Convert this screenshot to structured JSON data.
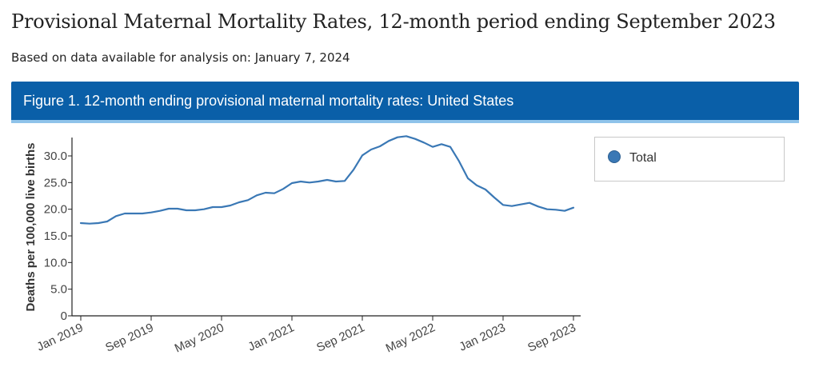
{
  "page": {
    "title": "Provisional Maternal Mortality Rates, 12-month period ending September 2023",
    "subtitle": "Based on data available for analysis on: January 7, 2024"
  },
  "figure": {
    "title": "Figure 1. 12-month ending provisional maternal mortality rates: United States",
    "header_color": "#0a5fa8",
    "accent_color": "#8fc3ea"
  },
  "legend": {
    "items": [
      {
        "label": "Total",
        "color": "#3a78b5"
      }
    ]
  },
  "chart_data": {
    "type": "line",
    "title": "Figure 1. 12-month ending provisional maternal mortality rates: United States",
    "xlabel": "",
    "ylabel": "Deaths per 100,000 live births",
    "ylim": [
      0,
      33.5
    ],
    "yticks": [
      0,
      5,
      10,
      15,
      20,
      25,
      30
    ],
    "ytick_labels": [
      "0",
      "5.0",
      "10.0",
      "15.0",
      "20.0",
      "25.0",
      "30.0"
    ],
    "xticks": [
      "Jan 2019",
      "Sep 2019",
      "May 2020",
      "Jan 2021",
      "Sep 2021",
      "May 2022",
      "Jan 2023",
      "Sep 2023"
    ],
    "xtick_month_index": [
      0,
      8,
      16,
      24,
      32,
      40,
      48,
      56
    ],
    "grid": false,
    "legend_position": "right",
    "x": [
      "Jan 2019",
      "Feb 2019",
      "Mar 2019",
      "Apr 2019",
      "May 2019",
      "Jun 2019",
      "Jul 2019",
      "Aug 2019",
      "Sep 2019",
      "Oct 2019",
      "Nov 2019",
      "Dec 2019",
      "Jan 2020",
      "Feb 2020",
      "Mar 2020",
      "Apr 2020",
      "May 2020",
      "Jun 2020",
      "Jul 2020",
      "Aug 2020",
      "Sep 2020",
      "Oct 2020",
      "Nov 2020",
      "Dec 2020",
      "Jan 2021",
      "Feb 2021",
      "Mar 2021",
      "Apr 2021",
      "May 2021",
      "Jun 2021",
      "Jul 2021",
      "Aug 2021",
      "Sep 2021",
      "Oct 2021",
      "Nov 2021",
      "Dec 2021",
      "Jan 2022",
      "Feb 2022",
      "Mar 2022",
      "Apr 2022",
      "May 2022",
      "Jun 2022",
      "Jul 2022",
      "Aug 2022",
      "Sep 2022",
      "Oct 2022",
      "Nov 2022",
      "Dec 2022",
      "Jan 2023",
      "Feb 2023",
      "Mar 2023",
      "Apr 2023",
      "May 2023",
      "Jun 2023",
      "Jul 2023",
      "Aug 2023",
      "Sep 2023"
    ],
    "series": [
      {
        "name": "Total",
        "color": "#3a78b5",
        "values": [
          17.4,
          17.3,
          17.4,
          17.7,
          18.7,
          19.2,
          19.2,
          19.2,
          19.4,
          19.7,
          20.1,
          20.1,
          19.8,
          19.8,
          20.0,
          20.4,
          20.4,
          20.7,
          21.3,
          21.7,
          22.6,
          23.1,
          23.0,
          23.8,
          24.9,
          25.2,
          25.0,
          25.2,
          25.5,
          25.2,
          25.3,
          27.4,
          30.1,
          31.2,
          31.8,
          32.8,
          33.5,
          33.7,
          33.2,
          32.5,
          31.7,
          32.2,
          31.7,
          29.0,
          25.8,
          24.5,
          23.7,
          22.2,
          20.8,
          20.6,
          20.9,
          21.2,
          20.5,
          20.0,
          19.9,
          19.7,
          20.3
        ]
      }
    ]
  }
}
